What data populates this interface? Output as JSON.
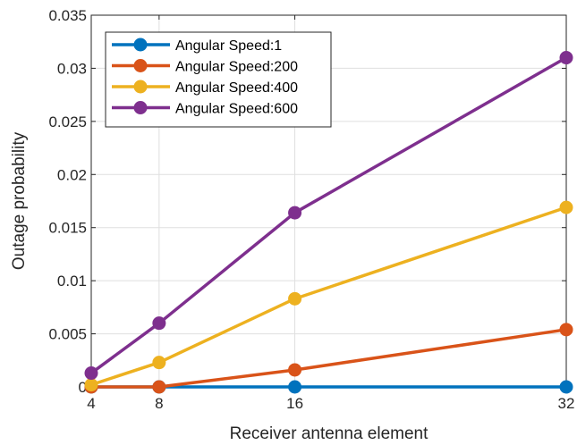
{
  "chart_data": {
    "type": "line",
    "title": "",
    "xlabel": "Receiver antenna element",
    "ylabel": "Outage probability",
    "x": [
      4,
      8,
      16,
      32
    ],
    "xticks": [
      "4",
      "8",
      "16",
      "32"
    ],
    "xlim": [
      4,
      32
    ],
    "ylim": [
      0,
      0.035
    ],
    "yticks": [
      0,
      0.005,
      0.01,
      0.015,
      0.02,
      0.025,
      0.03,
      0.035
    ],
    "yticklabels": [
      "0",
      "0.005",
      "0.01",
      "0.015",
      "0.02",
      "0.025",
      "0.03",
      "0.035"
    ],
    "grid": true,
    "legend_position": "top-left",
    "series": [
      {
        "name": "Angular Speed:1",
        "color": "#0072BD",
        "values": [
          0,
          0,
          0,
          0
        ]
      },
      {
        "name": "Angular Speed:200",
        "color": "#D95319",
        "values": [
          0,
          0,
          0.0016,
          0.0054
        ]
      },
      {
        "name": "Angular Speed:400",
        "color": "#EDB120",
        "values": [
          0.0002,
          0.0023,
          0.0083,
          0.0169
        ]
      },
      {
        "name": "Angular Speed:600",
        "color": "#7E2F8E",
        "values": [
          0.0013,
          0.006,
          0.0164,
          0.031
        ]
      }
    ]
  }
}
